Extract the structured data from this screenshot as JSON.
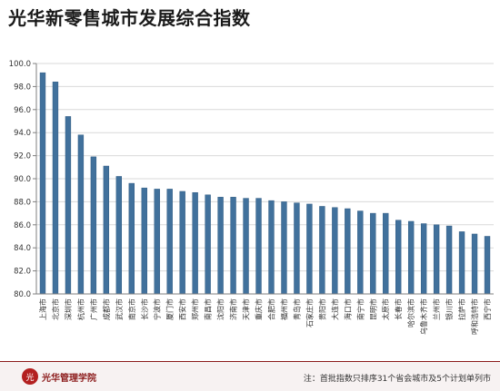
{
  "title": "光华新零售城市发展综合指数",
  "footer": {
    "logo_text": "光华管理学院",
    "note": "注：首批指数只排序31个省会城市及5个计划单列市"
  },
  "colors": {
    "bar": "#41719c",
    "bar_stroke": "#2f5a82",
    "grid": "#d9d9d9",
    "axis": "#7f7f7f"
  },
  "chart_data": {
    "type": "bar",
    "title": "光华新零售城市发展综合指数",
    "xlabel": "",
    "ylabel": "",
    "ylim": [
      80.0,
      100.0
    ],
    "yticks": [
      "80.0",
      "82.0",
      "84.0",
      "86.0",
      "88.0",
      "90.0",
      "92.0",
      "94.0",
      "96.0",
      "98.0",
      "100.0"
    ],
    "grid": true,
    "legend": "none",
    "categories": [
      "上海市",
      "北京市",
      "深圳市",
      "杭州市",
      "广州市",
      "成都市",
      "武汉市",
      "南京市",
      "长沙市",
      "宁波市",
      "厦门市",
      "西安市",
      "郑州市",
      "南昌市",
      "沈阳市",
      "济南市",
      "天津市",
      "重庆市",
      "合肥市",
      "福州市",
      "青岛市",
      "石家庄市",
      "贵阳市",
      "大连市",
      "海口市",
      "南宁市",
      "昆明市",
      "太原市",
      "长春市",
      "哈尔滨市",
      "乌鲁木齐市",
      "兰州市",
      "银川市",
      "拉萨市",
      "呼和浩特市",
      "西宁市"
    ],
    "values": [
      99.2,
      98.4,
      95.4,
      93.8,
      91.9,
      91.1,
      90.2,
      89.6,
      89.2,
      89.1,
      89.1,
      88.9,
      88.8,
      88.6,
      88.4,
      88.4,
      88.3,
      88.3,
      88.1,
      88.0,
      87.9,
      87.8,
      87.6,
      87.5,
      87.4,
      87.2,
      87.0,
      87.0,
      86.4,
      86.3,
      86.1,
      86.0,
      85.9,
      85.4,
      85.2,
      85.0
    ]
  }
}
